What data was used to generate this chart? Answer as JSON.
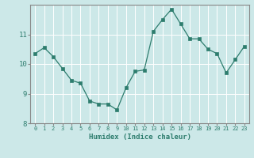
{
  "x": [
    0,
    1,
    2,
    3,
    4,
    5,
    6,
    7,
    8,
    9,
    10,
    11,
    12,
    13,
    14,
    15,
    16,
    17,
    18,
    19,
    20,
    21,
    22,
    23
  ],
  "y": [
    10.35,
    10.55,
    10.25,
    9.85,
    9.45,
    9.35,
    8.75,
    8.65,
    8.65,
    8.45,
    9.2,
    9.75,
    9.8,
    11.1,
    11.5,
    11.85,
    11.35,
    10.85,
    10.85,
    10.5,
    10.35,
    9.7,
    10.15,
    10.6
  ],
  "xlabel": "Humidex (Indice chaleur)",
  "ylim": [
    8.0,
    12.0
  ],
  "xlim_min": -0.5,
  "xlim_max": 23.5,
  "yticks": [
    8,
    9,
    10,
    11
  ],
  "xticks": [
    0,
    1,
    2,
    3,
    4,
    5,
    6,
    7,
    8,
    9,
    10,
    11,
    12,
    13,
    14,
    15,
    16,
    17,
    18,
    19,
    20,
    21,
    22,
    23
  ],
  "line_color": "#2e7d6e",
  "marker_color": "#2e7d6e",
  "bg_color": "#cce8e8",
  "plot_bg_color": "#cce8e8",
  "grid_color": "#ffffff",
  "tick_label_color": "#2e7d6e",
  "xlabel_color": "#2e7d6e",
  "spine_color": "#888888",
  "tick_fontsize": 5.0,
  "ytick_fontsize": 6.5,
  "xlabel_fontsize": 6.5,
  "linewidth": 0.9,
  "markersize": 2.2
}
